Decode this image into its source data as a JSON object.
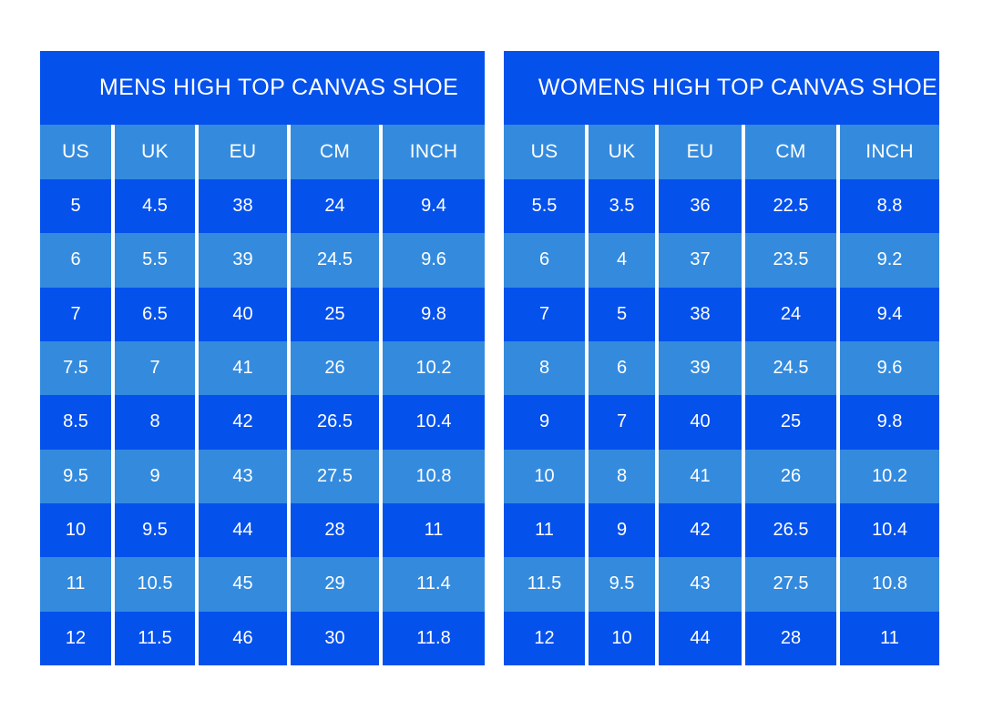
{
  "colors": {
    "dark_blue": "#0551ec",
    "light_blue": "#348bde",
    "text": "#ffffff",
    "background": "#ffffff"
  },
  "chart_data": [
    {
      "type": "table",
      "title": "MENS HIGH TOP CANVAS SHOE",
      "columns": [
        "US",
        "UK",
        "EU",
        "CM",
        "INCH"
      ],
      "rows": [
        [
          "5",
          "4.5",
          "38",
          "24",
          "9.4"
        ],
        [
          "6",
          "5.5",
          "39",
          "24.5",
          "9.6"
        ],
        [
          "7",
          "6.5",
          "40",
          "25",
          "9.8"
        ],
        [
          "7.5",
          "7",
          "41",
          "26",
          "10.2"
        ],
        [
          "8.5",
          "8",
          "42",
          "26.5",
          "10.4"
        ],
        [
          "9.5",
          "9",
          "43",
          "27.5",
          "10.8"
        ],
        [
          "10",
          "9.5",
          "44",
          "28",
          "11"
        ],
        [
          "11",
          "10.5",
          "45",
          "29",
          "11.4"
        ],
        [
          "12",
          "11.5",
          "46",
          "30",
          "11.8"
        ]
      ],
      "layout": {
        "row_striping": [
          "dark_blue",
          "light_blue"
        ],
        "first_data_row_color": "dark_blue"
      }
    },
    {
      "type": "table",
      "title": "WOMENS HIGH TOP CANVAS SHOE",
      "columns": [
        "US",
        "UK",
        "EU",
        "CM",
        "INCH"
      ],
      "rows": [
        [
          "5.5",
          "3.5",
          "36",
          "22.5",
          "8.8"
        ],
        [
          "6",
          "4",
          "37",
          "23.5",
          "9.2"
        ],
        [
          "7",
          "5",
          "38",
          "24",
          "9.4"
        ],
        [
          "8",
          "6",
          "39",
          "24.5",
          "9.6"
        ],
        [
          "9",
          "7",
          "40",
          "25",
          "9.8"
        ],
        [
          "10",
          "8",
          "41",
          "26",
          "10.2"
        ],
        [
          "11",
          "9",
          "42",
          "26.5",
          "10.4"
        ],
        [
          "11.5",
          "9.5",
          "43",
          "27.5",
          "10.8"
        ],
        [
          "12",
          "10",
          "44",
          "28",
          "11"
        ]
      ],
      "layout": {
        "row_striping": [
          "dark_blue",
          "light_blue"
        ],
        "first_data_row_color": "dark_blue"
      }
    }
  ]
}
